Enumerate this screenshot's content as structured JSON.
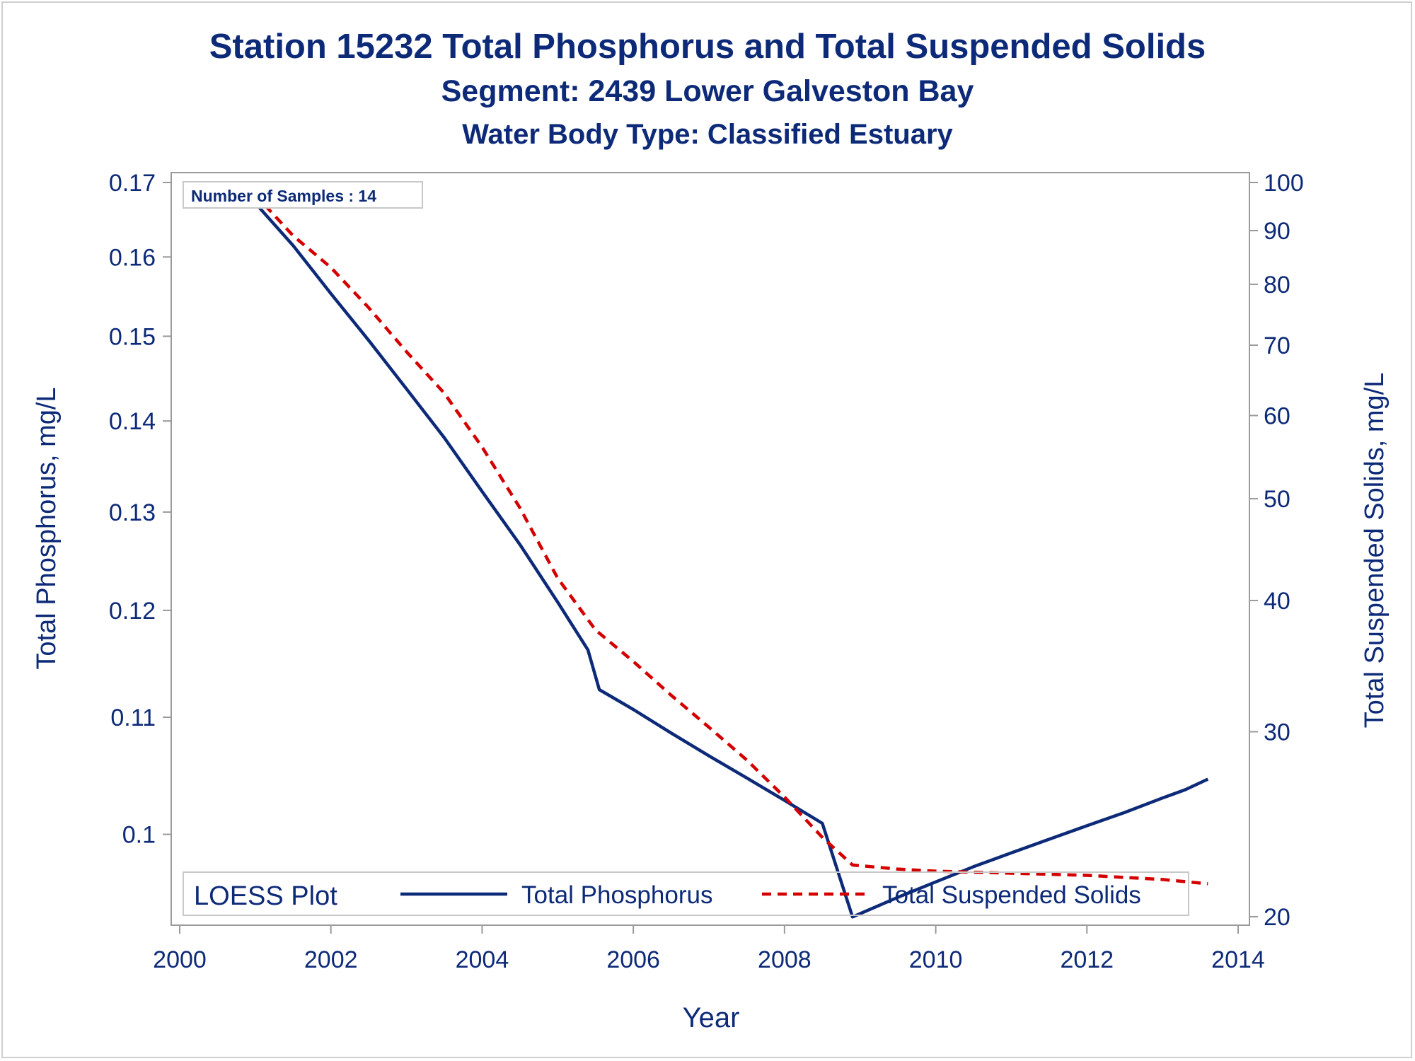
{
  "colors": {
    "text": "#0d2a78",
    "phosphorus": "#0d2a78",
    "suspended_solids": "#d40000",
    "frame": "#9a9a9a",
    "legend_border": "#c8c8c8"
  },
  "chart_data": {
    "type": "line",
    "title": "Station 15232  Total Phosphorus and Total Suspended Solids",
    "subtitle": "Segment: 2439  Lower Galveston Bay",
    "subtitle2": "Water Body Type: Classified Estuary",
    "xlabel": "Year",
    "ylabel_left": "Total Phosphorus, mg/L",
    "ylabel_right": "Total Suspended Solids, mg/L",
    "xlim": [
      2000,
      2014
    ],
    "x_ticks": [
      2000,
      2002,
      2004,
      2006,
      2008,
      2010,
      2012,
      2014
    ],
    "x_tick_labels": [
      "2000",
      "2002",
      "2004",
      "2006",
      "2008",
      "2010",
      "2012",
      "2014"
    ],
    "ylim_left": [
      0.0933,
      0.17
    ],
    "y_left_scale": "log",
    "y_left_ticks": [
      0.17,
      0.16,
      0.15,
      0.14,
      0.13,
      0.12,
      0.11,
      0.1
    ],
    "y_left_tick_labels": [
      "0.17",
      "0.16",
      "0.15",
      "0.14",
      "0.13",
      "0.12",
      "0.11",
      "0.1"
    ],
    "ylim_right": [
      20,
      100
    ],
    "y_right_scale": "log",
    "y_right_ticks": [
      100,
      90,
      80,
      70,
      60,
      50,
      40,
      30,
      20
    ],
    "y_right_tick_labels": [
      "100",
      "90",
      "80",
      "70",
      "60",
      "50",
      "40",
      "30",
      "20"
    ],
    "annotation": "Number of Samples : 14",
    "legend": {
      "title": "LOESS Plot",
      "position": "bottom-inside",
      "entries": [
        "Total Phosphorus",
        "Total Suspended Solids"
      ]
    },
    "grid": false,
    "series": [
      {
        "name": "Total Phosphorus",
        "axis": "left",
        "style": "solid",
        "x": [
          2000.8,
          2001.5,
          2002.0,
          2002.5,
          2003.0,
          2003.5,
          2004.0,
          2004.5,
          2005.0,
          2005.4,
          2005.55,
          2006.0,
          2006.5,
          2007.0,
          2007.5,
          2008.0,
          2008.5,
          2008.9,
          2009.5,
          2010.0,
          2010.5,
          2011.0,
          2011.5,
          2012.0,
          2012.5,
          2013.0,
          2013.3,
          2013.6
        ],
        "y": [
          0.1695,
          0.1615,
          0.1553,
          0.1495,
          0.1437,
          0.1381,
          0.1322,
          0.1266,
          0.1208,
          0.1162,
          0.1125,
          0.1107,
          0.1086,
          0.1066,
          0.1047,
          0.1028,
          0.1009,
          0.0935,
          0.095,
          0.0962,
          0.0974,
          0.0985,
          0.0996,
          0.1007,
          0.1018,
          0.103,
          0.1037,
          0.1046
        ]
      },
      {
        "name": "Total Suspended Solids",
        "axis": "right",
        "style": "dashed",
        "x": [
          2000.85,
          2001.5,
          2002.0,
          2002.5,
          2003.0,
          2003.5,
          2004.0,
          2004.5,
          2005.0,
          2005.5,
          2006.0,
          2006.5,
          2007.0,
          2007.5,
          2008.0,
          2008.5,
          2008.9,
          2009.5,
          2010.0,
          2011.0,
          2012.0,
          2013.0,
          2013.6
        ],
        "y": [
          100,
          89,
          83,
          76,
          69,
          63,
          56,
          49,
          42,
          37.5,
          35,
          32.5,
          30.3,
          28.2,
          26.0,
          23.8,
          22.4,
          22.2,
          22.1,
          22.0,
          21.9,
          21.7,
          21.5
        ]
      }
    ]
  }
}
